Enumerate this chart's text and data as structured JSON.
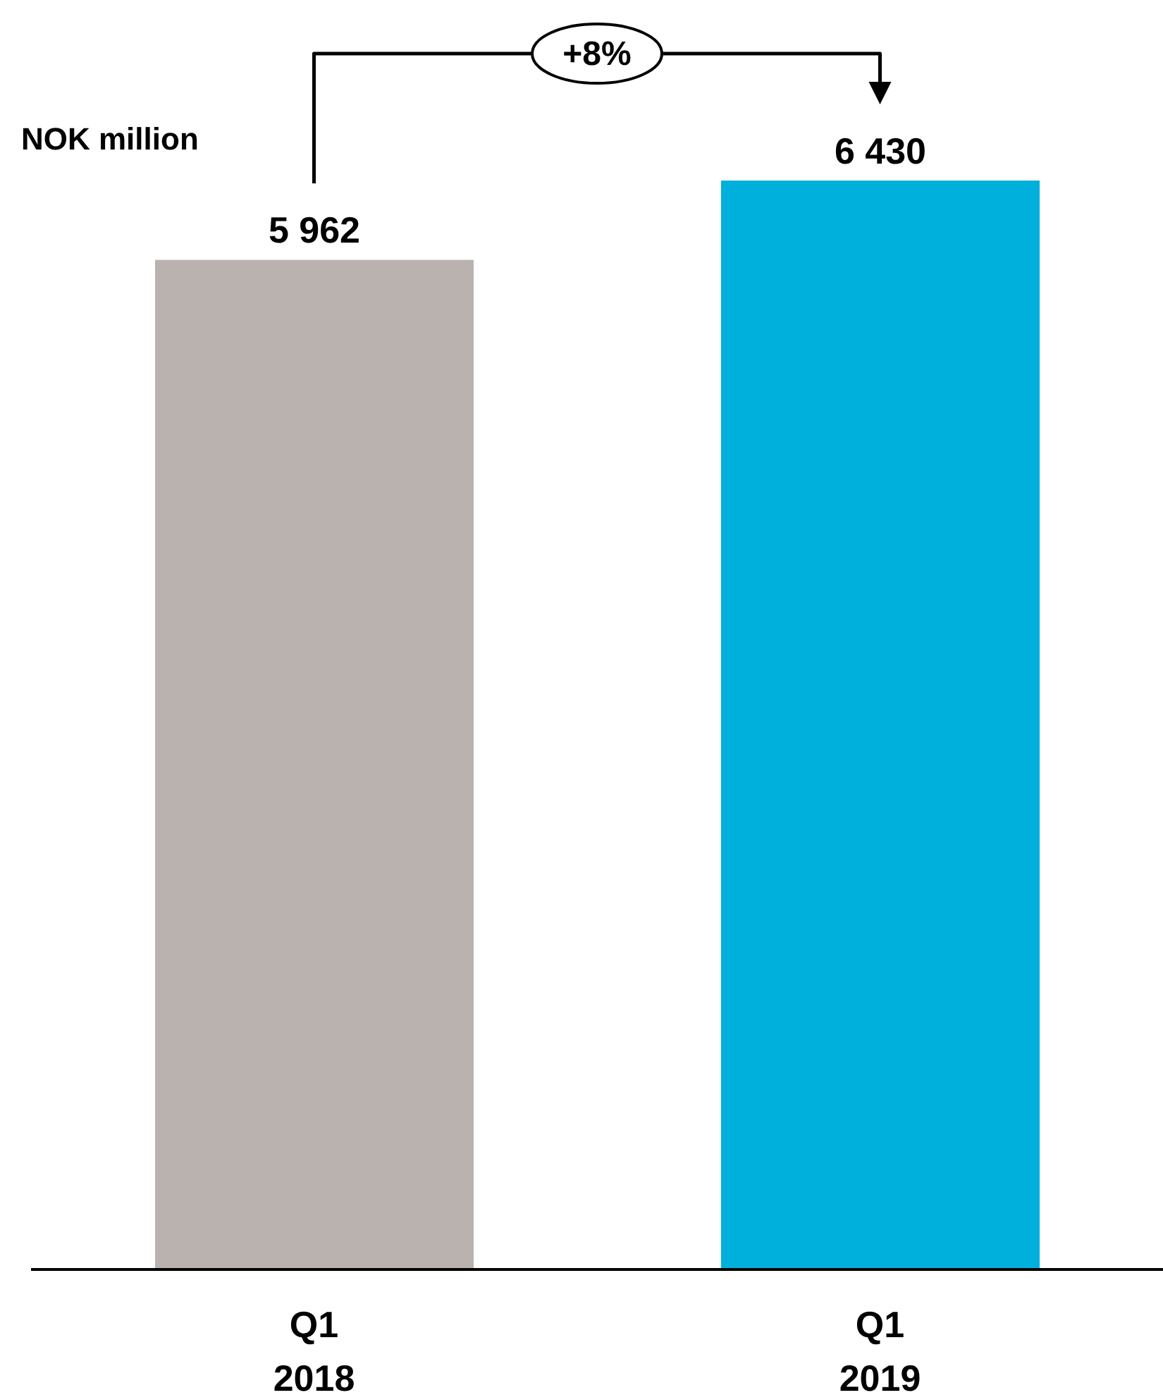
{
  "chart_data": {
    "type": "bar",
    "ylabel": "NOK million",
    "categories": [
      "Q1 2018",
      "Q1 2019"
    ],
    "values": [
      5962,
      6430
    ],
    "value_labels": [
      "5 962",
      "6 430"
    ],
    "colors": [
      "#bab2ae",
      "#00b0dc"
    ],
    "annotations": [
      "+8%"
    ],
    "legend": false,
    "grid": false
  }
}
